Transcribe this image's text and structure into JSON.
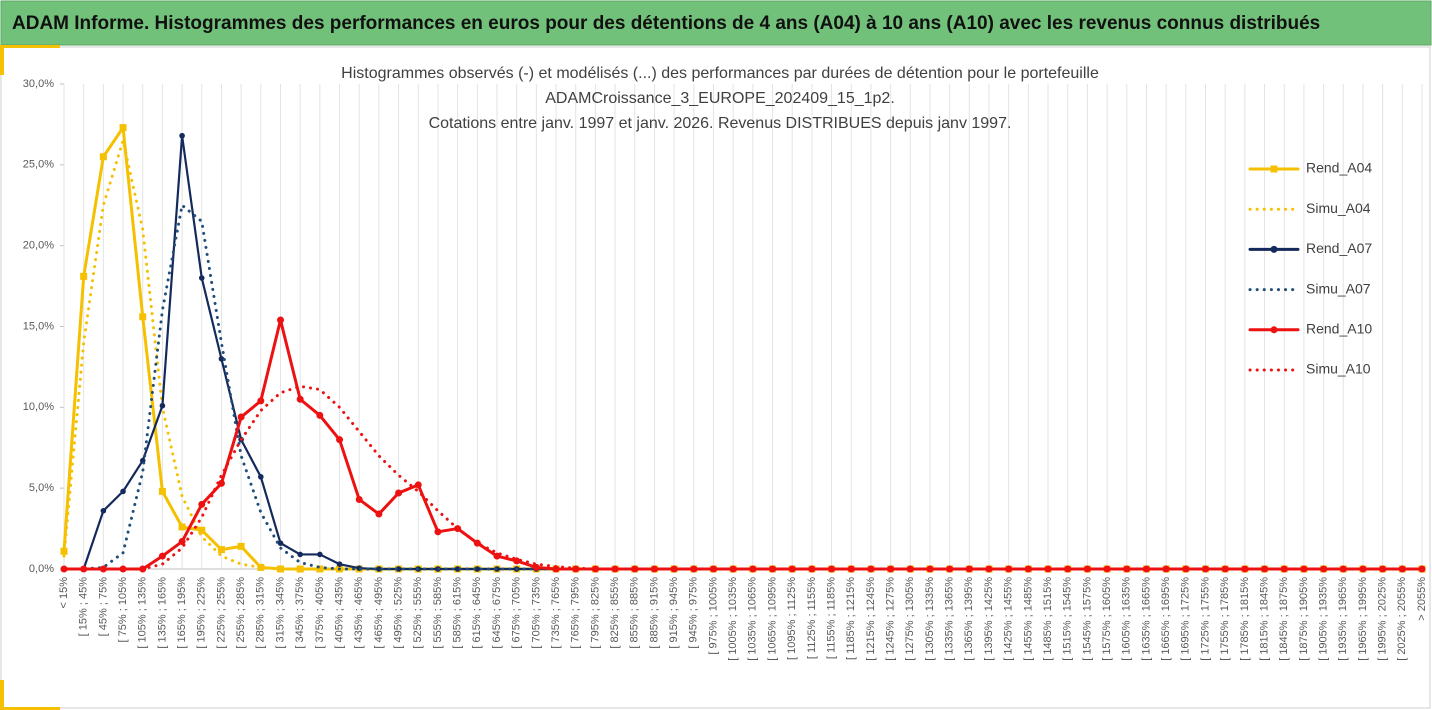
{
  "header": {
    "title": "ADAM Informe. Histogrammes des performances en euros pour des détentions de 4 ans (A04) à 10 ans (A10) avec les revenus connus distribués"
  },
  "chart_data": {
    "type": "line",
    "title": [
      "Histogrammes observés (-) et modélisés (...) des performances par durées de détention pour le portefeuille",
      "ADAMCroissance_3_EUROPE_202409_15_1p2.",
      "Cotations entre janv. 1997 et janv. 2026. Revenus DISTRIBUES depuis janv 1997."
    ],
    "categories": [
      "< 15%",
      "[ 15% ; 45%",
      "[ 45% ; 75%",
      "[ 75% ; 105%",
      "[ 105% ; 135%",
      "[ 135% ; 165%",
      "[ 165% ; 195%",
      "[ 195% ; 225%",
      "[ 225% ; 255%",
      "[ 255% ; 285%",
      "[ 285% ; 315%",
      "[ 315% ; 345%",
      "[ 345% ; 375%",
      "[ 375% ; 405%",
      "[ 405% ; 435%",
      "[ 435% ; 465%",
      "[ 465% ; 495%",
      "[ 495% ; 525%",
      "[ 525% ; 555%",
      "[ 555% ; 585%",
      "[ 585% ; 615%",
      "[ 615% ; 645%",
      "[ 645% ; 675%",
      "[ 675% ; 705%",
      "[ 705% ; 735%",
      "[ 735% ; 765%",
      "[ 765% ; 795%",
      "[ 795% ; 825%",
      "[ 825% ; 855%",
      "[ 855% ; 885%",
      "[ 885% ; 915%",
      "[ 915% ; 945%",
      "[ 945% ; 975%",
      "[ 975% ; 1005%",
      "[ 1005% ; 1035%",
      "[ 1035% ; 1065%",
      "[ 1065% ; 1095%",
      "[ 1095% ; 1125%",
      "[ 1125% ; 1155%",
      "[ 1155% ; 1185%",
      "[ 1185% ; 1215%",
      "[ 1215% ; 1245%",
      "[ 1245% ; 1275%",
      "[ 1275% ; 1305%",
      "[ 1305% ; 1335%",
      "[ 1335% ; 1365%",
      "[ 1365% ; 1395%",
      "[ 1395% ; 1425%",
      "[ 1425% ; 1455%",
      "[ 1455% ; 1485%",
      "[ 1485% ; 1515%",
      "[ 1515% ; 1545%",
      "[ 1545% ; 1575%",
      "[ 1575% ; 1605%",
      "[ 1605% ; 1635%",
      "[ 1635% ; 1665%",
      "[ 1665% ; 1695%",
      "[ 1695% ; 1725%",
      "[ 1725% ; 1755%",
      "[ 1755% ; 1785%",
      "[ 1785% ; 1815%",
      "[ 1815% ; 1845%",
      "[ 1845% ; 1875%",
      "[ 1875% ; 1905%",
      "[ 1905% ; 1935%",
      "[ 1935% ; 1965%",
      "[ 1965% ; 1995%",
      "[ 1995% ; 2025%",
      "[ 2025% ; 2055%",
      "> 2055%"
    ],
    "series": [
      {
        "name": "Rend_A04",
        "color": "#f5c000",
        "style": "solid",
        "marker": "square",
        "values": [
          1.1,
          18.1,
          25.5,
          27.3,
          15.6,
          4.8,
          2.6,
          2.4,
          1.2,
          1.4,
          0.1,
          0,
          0,
          0,
          0,
          0,
          0,
          0,
          0,
          0,
          0,
          0,
          0,
          0,
          0,
          0,
          0,
          0,
          0,
          0,
          0,
          0,
          0,
          0,
          0,
          0,
          0,
          0,
          0,
          0,
          0,
          0,
          0,
          0,
          0,
          0,
          0,
          0,
          0,
          0,
          0,
          0,
          0,
          0,
          0,
          0,
          0,
          0,
          0,
          0,
          0,
          0,
          0,
          0,
          0,
          0,
          0,
          0,
          0,
          0
        ]
      },
      {
        "name": "Simu_A04",
        "color": "#f5c000",
        "style": "dotted",
        "marker": "none",
        "values": [
          0.8,
          14,
          22.5,
          26.5,
          21,
          10,
          4.5,
          2,
          0.8,
          0.3,
          0.1,
          0,
          0,
          0,
          0,
          0,
          0,
          0,
          0,
          0,
          0,
          0,
          0,
          0,
          0,
          0,
          0,
          0,
          0,
          0,
          0,
          0,
          0,
          0,
          0,
          0,
          0,
          0,
          0,
          0,
          0,
          0,
          0,
          0,
          0,
          0,
          0,
          0,
          0,
          0,
          0,
          0,
          0,
          0,
          0,
          0,
          0,
          0,
          0,
          0,
          0,
          0,
          0,
          0,
          0,
          0,
          0,
          0,
          0,
          0
        ]
      },
      {
        "name": "Rend_A07",
        "color": "#142a5c",
        "style": "solid",
        "marker": "circle",
        "values": [
          0,
          0,
          3.6,
          4.8,
          6.7,
          10.1,
          26.8,
          18,
          13,
          8,
          5.7,
          1.6,
          0.9,
          0.9,
          0.3,
          0.05,
          0,
          0,
          0,
          0,
          0,
          0,
          0,
          0,
          0,
          0,
          0,
          0,
          0,
          0,
          0,
          0,
          0,
          0,
          0,
          0,
          0,
          0,
          0,
          0,
          0,
          0,
          0,
          0,
          0,
          0,
          0,
          0,
          0,
          0,
          0,
          0,
          0,
          0,
          0,
          0,
          0,
          0,
          0,
          0,
          0,
          0,
          0,
          0,
          0,
          0,
          0,
          0,
          0,
          0
        ]
      },
      {
        "name": "Simu_A07",
        "color": "#1f4e79",
        "style": "dotted",
        "marker": "none",
        "values": [
          0,
          0,
          0.1,
          1,
          6,
          16,
          22.5,
          21.5,
          14,
          7,
          3.5,
          1.3,
          0.4,
          0.1,
          0,
          0,
          0,
          0,
          0,
          0,
          0,
          0,
          0,
          0,
          0,
          0,
          0,
          0,
          0,
          0,
          0,
          0,
          0,
          0,
          0,
          0,
          0,
          0,
          0,
          0,
          0,
          0,
          0,
          0,
          0,
          0,
          0,
          0,
          0,
          0,
          0,
          0,
          0,
          0,
          0,
          0,
          0,
          0,
          0,
          0,
          0,
          0,
          0,
          0,
          0,
          0,
          0,
          0,
          0,
          0
        ]
      },
      {
        "name": "Rend_A10",
        "color": "#ee1111",
        "style": "solid",
        "marker": "circle",
        "values": [
          0,
          0,
          0,
          0,
          0,
          0.8,
          1.7,
          4,
          5.3,
          9.4,
          10.4,
          15.4,
          10.5,
          9.5,
          8,
          4.3,
          3.4,
          4.7,
          5.2,
          2.3,
          2.5,
          1.6,
          0.8,
          0.5,
          0.1,
          0,
          0,
          0,
          0,
          0,
          0,
          0,
          0,
          0,
          0,
          0,
          0,
          0,
          0,
          0,
          0,
          0,
          0,
          0,
          0,
          0,
          0,
          0,
          0,
          0,
          0,
          0,
          0,
          0,
          0,
          0,
          0,
          0,
          0,
          0,
          0,
          0,
          0,
          0,
          0,
          0,
          0,
          0,
          0,
          0
        ]
      },
      {
        "name": "Simu_A10",
        "color": "#ee1111",
        "style": "dotted",
        "marker": "none",
        "values": [
          0,
          0,
          0,
          0,
          0,
          0.3,
          1.3,
          3.2,
          5.8,
          8,
          9.8,
          10.9,
          11.3,
          11.1,
          10,
          8.5,
          7,
          5.8,
          4.8,
          3.6,
          2.5,
          1.6,
          1,
          0.6,
          0.3,
          0.15,
          0.05,
          0,
          0,
          0,
          0,
          0,
          0,
          0,
          0,
          0,
          0,
          0,
          0,
          0,
          0,
          0,
          0,
          0,
          0,
          0,
          0,
          0,
          0,
          0,
          0,
          0,
          0,
          0,
          0,
          0,
          0,
          0,
          0,
          0,
          0,
          0,
          0,
          0,
          0,
          0,
          0,
          0,
          0,
          0
        ]
      }
    ],
    "ylim": [
      0,
      30
    ],
    "yticks": [
      {
        "value": 0,
        "label": "0,0%"
      },
      {
        "value": 5,
        "label": "5,0%"
      },
      {
        "value": 10,
        "label": "10,0%"
      },
      {
        "value": 15,
        "label": "15,0%"
      },
      {
        "value": 20,
        "label": "20,0%"
      },
      {
        "value": 25,
        "label": "25,0%"
      },
      {
        "value": 30,
        "label": "30,0%"
      }
    ],
    "grid": "vertical",
    "legend": "right"
  }
}
